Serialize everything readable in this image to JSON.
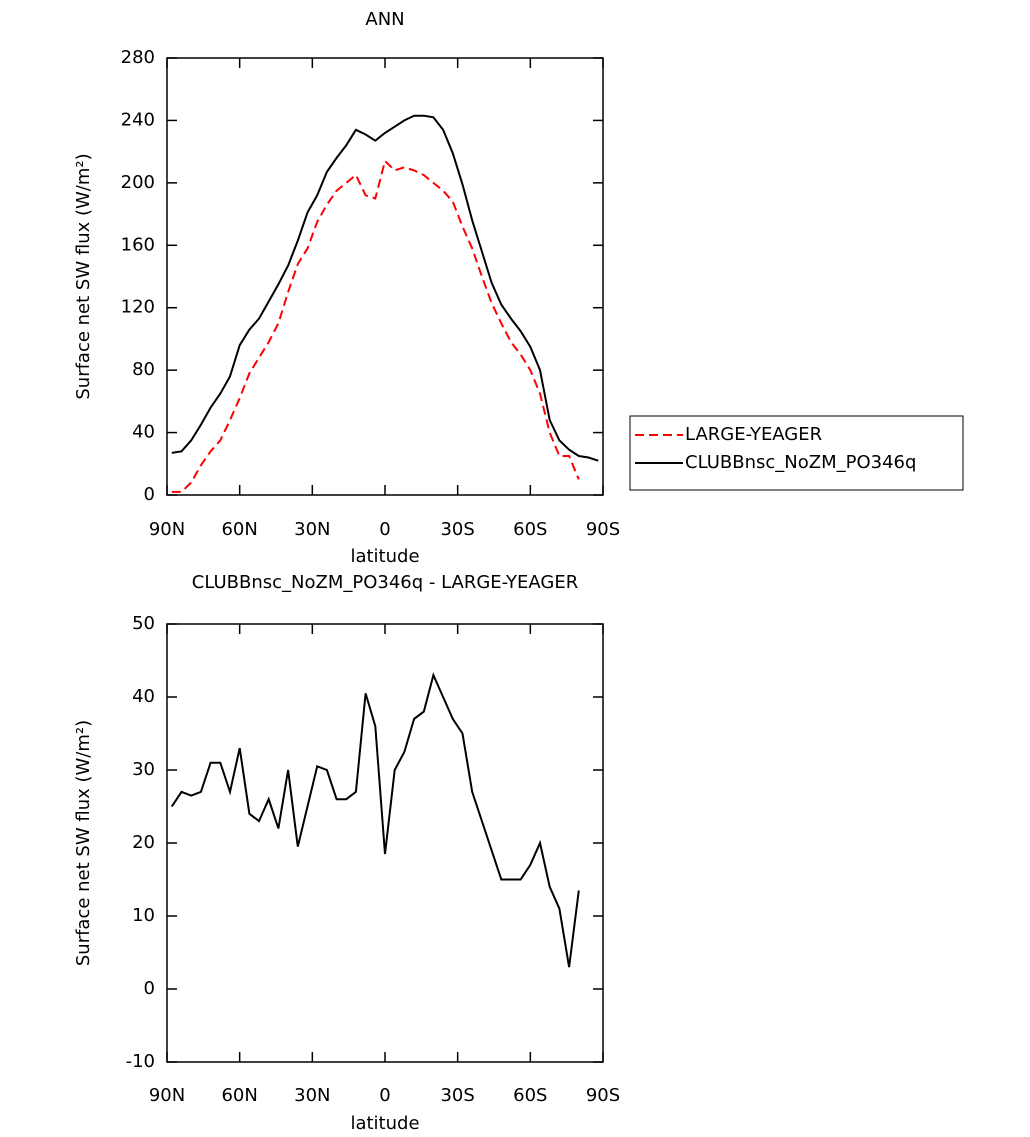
{
  "chart_data": [
    {
      "type": "line",
      "title": "ANN",
      "xlabel": "latitude",
      "ylabel": "Surface net SW flux (W/m²)",
      "x": [
        88,
        84,
        80,
        76,
        72,
        68,
        64,
        60,
        56,
        52,
        48,
        44,
        40,
        36,
        32,
        28,
        24,
        20,
        16,
        12,
        8,
        4,
        0,
        -4,
        -8,
        -12,
        -16,
        -20,
        -24,
        -28,
        -32,
        -36,
        -40,
        -44,
        -48,
        -52,
        -56,
        -60,
        -64,
        -68,
        -72,
        -76,
        -80,
        -84,
        -88
      ],
      "xlim": [
        90,
        -90
      ],
      "xticks": [
        {
          "value": 90,
          "label": "90N"
        },
        {
          "value": 60,
          "label": "60N"
        },
        {
          "value": 30,
          "label": "30N"
        },
        0,
        {
          "value": -30,
          "label": "30S"
        },
        {
          "value": -60,
          "label": "60S"
        },
        {
          "value": -90,
          "label": "90S"
        }
      ],
      "ylim": [
        0,
        280
      ],
      "yticks": [
        0,
        40,
        80,
        120,
        160,
        200,
        240,
        280
      ],
      "legend": "right",
      "series": [
        {
          "name": "LARGE-YEAGER",
          "color": "#ff0000",
          "line_style": "dashed",
          "values": [
            2,
            2,
            8,
            19,
            28,
            35,
            48,
            62,
            78,
            88,
            98,
            110,
            130,
            148,
            158,
            175,
            186,
            195,
            200,
            205,
            192,
            190,
            214,
            208,
            210,
            208,
            205,
            200,
            195,
            188,
            172,
            158,
            140,
            123,
            110,
            98,
            90,
            80,
            65,
            40,
            25,
            25,
            10,
            null,
            null
          ]
        },
        {
          "name": "CLUBBnsc_NoZM_PO346q",
          "color": "#000000",
          "line_style": "solid",
          "values": [
            27,
            28,
            35,
            45,
            56,
            65,
            76,
            96,
            106,
            113,
            124,
            135,
            147,
            163,
            181,
            192,
            207,
            216,
            224,
            234,
            231,
            227,
            232,
            236,
            240,
            243,
            243,
            242,
            234,
            219,
            199,
            176,
            156,
            136,
            122,
            113,
            105,
            95,
            80,
            48,
            35,
            29,
            25,
            24,
            22
          ]
        }
      ]
    },
    {
      "type": "line",
      "title": "CLUBBnsc_NoZM_PO346q - LARGE-YEAGER",
      "xlabel": "latitude",
      "ylabel": "Surface net SW flux (W/m²)",
      "x": [
        88,
        84,
        80,
        76,
        72,
        68,
        64,
        60,
        56,
        52,
        48,
        44,
        40,
        36,
        32,
        28,
        24,
        20,
        16,
        12,
        8,
        4,
        0,
        -4,
        -8,
        -12,
        -16,
        -20,
        -24,
        -28,
        -32,
        -36,
        -40,
        -44,
        -48,
        -52,
        -56,
        -60,
        -64,
        -68,
        -72,
        -76,
        -80
      ],
      "xlim": [
        90,
        -90
      ],
      "xticks": [
        {
          "value": 90,
          "label": "90N"
        },
        {
          "value": 60,
          "label": "60N"
        },
        {
          "value": 30,
          "label": "30N"
        },
        0,
        {
          "value": -30,
          "label": "30S"
        },
        {
          "value": -60,
          "label": "60S"
        },
        {
          "value": -90,
          "label": "90S"
        }
      ],
      "ylim": [
        -10,
        50
      ],
      "yticks": [
        -10,
        0,
        10,
        20,
        30,
        40,
        50
      ],
      "series": [
        {
          "color": "#000000",
          "line_style": "solid",
          "values": [
            25,
            27,
            26.5,
            27,
            31,
            31,
            27,
            33,
            24,
            23,
            26,
            22,
            30,
            19.5,
            25,
            30.5,
            30,
            26,
            26,
            27,
            40.5,
            36,
            18.5,
            30,
            32.5,
            37,
            38,
            43,
            40,
            37,
            35,
            27,
            23,
            19,
            15,
            15,
            15,
            17,
            20,
            14,
            11,
            3,
            13.5
          ]
        }
      ]
    }
  ]
}
